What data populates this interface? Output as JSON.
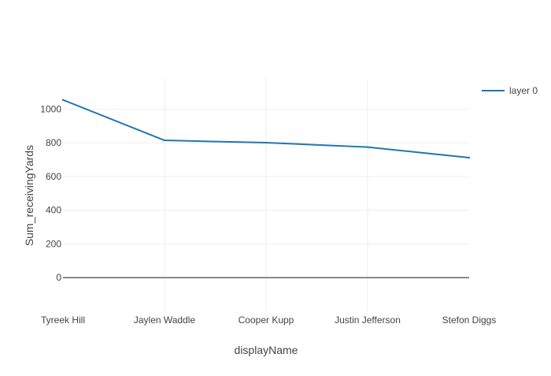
{
  "chart_data": {
    "type": "line",
    "categories": [
      "Tyreek Hill",
      "Jaylen Waddle",
      "Cooper Kupp",
      "Justin Jefferson",
      "Stefon Diggs"
    ],
    "series": [
      {
        "name": "layer 0",
        "values": [
          1055,
          815,
          801,
          775,
          712
        ],
        "color": "#1f77b4"
      }
    ],
    "xlabel": "displayName",
    "ylabel": "Sum_receivingYards",
    "ylim": [
      -200,
      1180
    ],
    "yticks": [
      0,
      200,
      400,
      600,
      800,
      1000
    ],
    "grid": true,
    "legend_position": "top-right",
    "colors": {
      "grid": "#eeeeee",
      "zeroline": "#444444",
      "text": "#444444"
    }
  }
}
